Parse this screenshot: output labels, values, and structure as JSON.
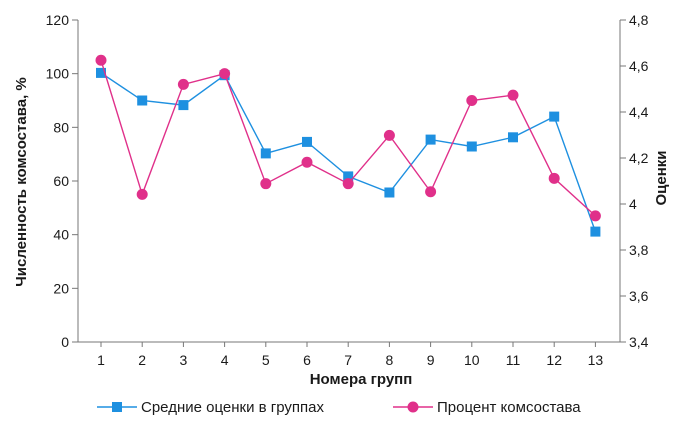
{
  "chart_data": {
    "type": "line",
    "x": [
      1,
      2,
      3,
      4,
      5,
      6,
      7,
      8,
      9,
      10,
      11,
      12,
      13
    ],
    "xlabel": "Номера групп",
    "ylabel_left": "Численность комсостава, %",
    "ylabel_right": "Оценки",
    "left_axis": {
      "ylim": [
        0,
        120
      ],
      "ticks": [
        0,
        20,
        40,
        60,
        80,
        100,
        120
      ]
    },
    "right_axis": {
      "ylim": [
        3.4,
        4.8
      ],
      "ticks": [
        "3,4",
        "3,6",
        "3,8",
        "4",
        "4,2",
        "4,4",
        "4,6",
        "4,8"
      ],
      "tick_values": [
        3.4,
        3.6,
        3.8,
        4.0,
        4.2,
        4.4,
        4.6,
        4.8
      ]
    },
    "grid": false,
    "legend_position": "bottom",
    "series": [
      {
        "name": "Средние оценки в группах",
        "axis": "right",
        "marker": "square",
        "color": "#1e90e0",
        "values": [
          4.57,
          4.45,
          4.43,
          4.56,
          4.22,
          4.27,
          4.12,
          4.05,
          4.28,
          4.25,
          4.29,
          4.38,
          3.88
        ]
      },
      {
        "name": "Процент комсостава",
        "axis": "left",
        "marker": "circle",
        "color": "#e0308a",
        "values": [
          105,
          55,
          96,
          100,
          59,
          67,
          59,
          77,
          56,
          90,
          92,
          61,
          47
        ]
      }
    ]
  }
}
